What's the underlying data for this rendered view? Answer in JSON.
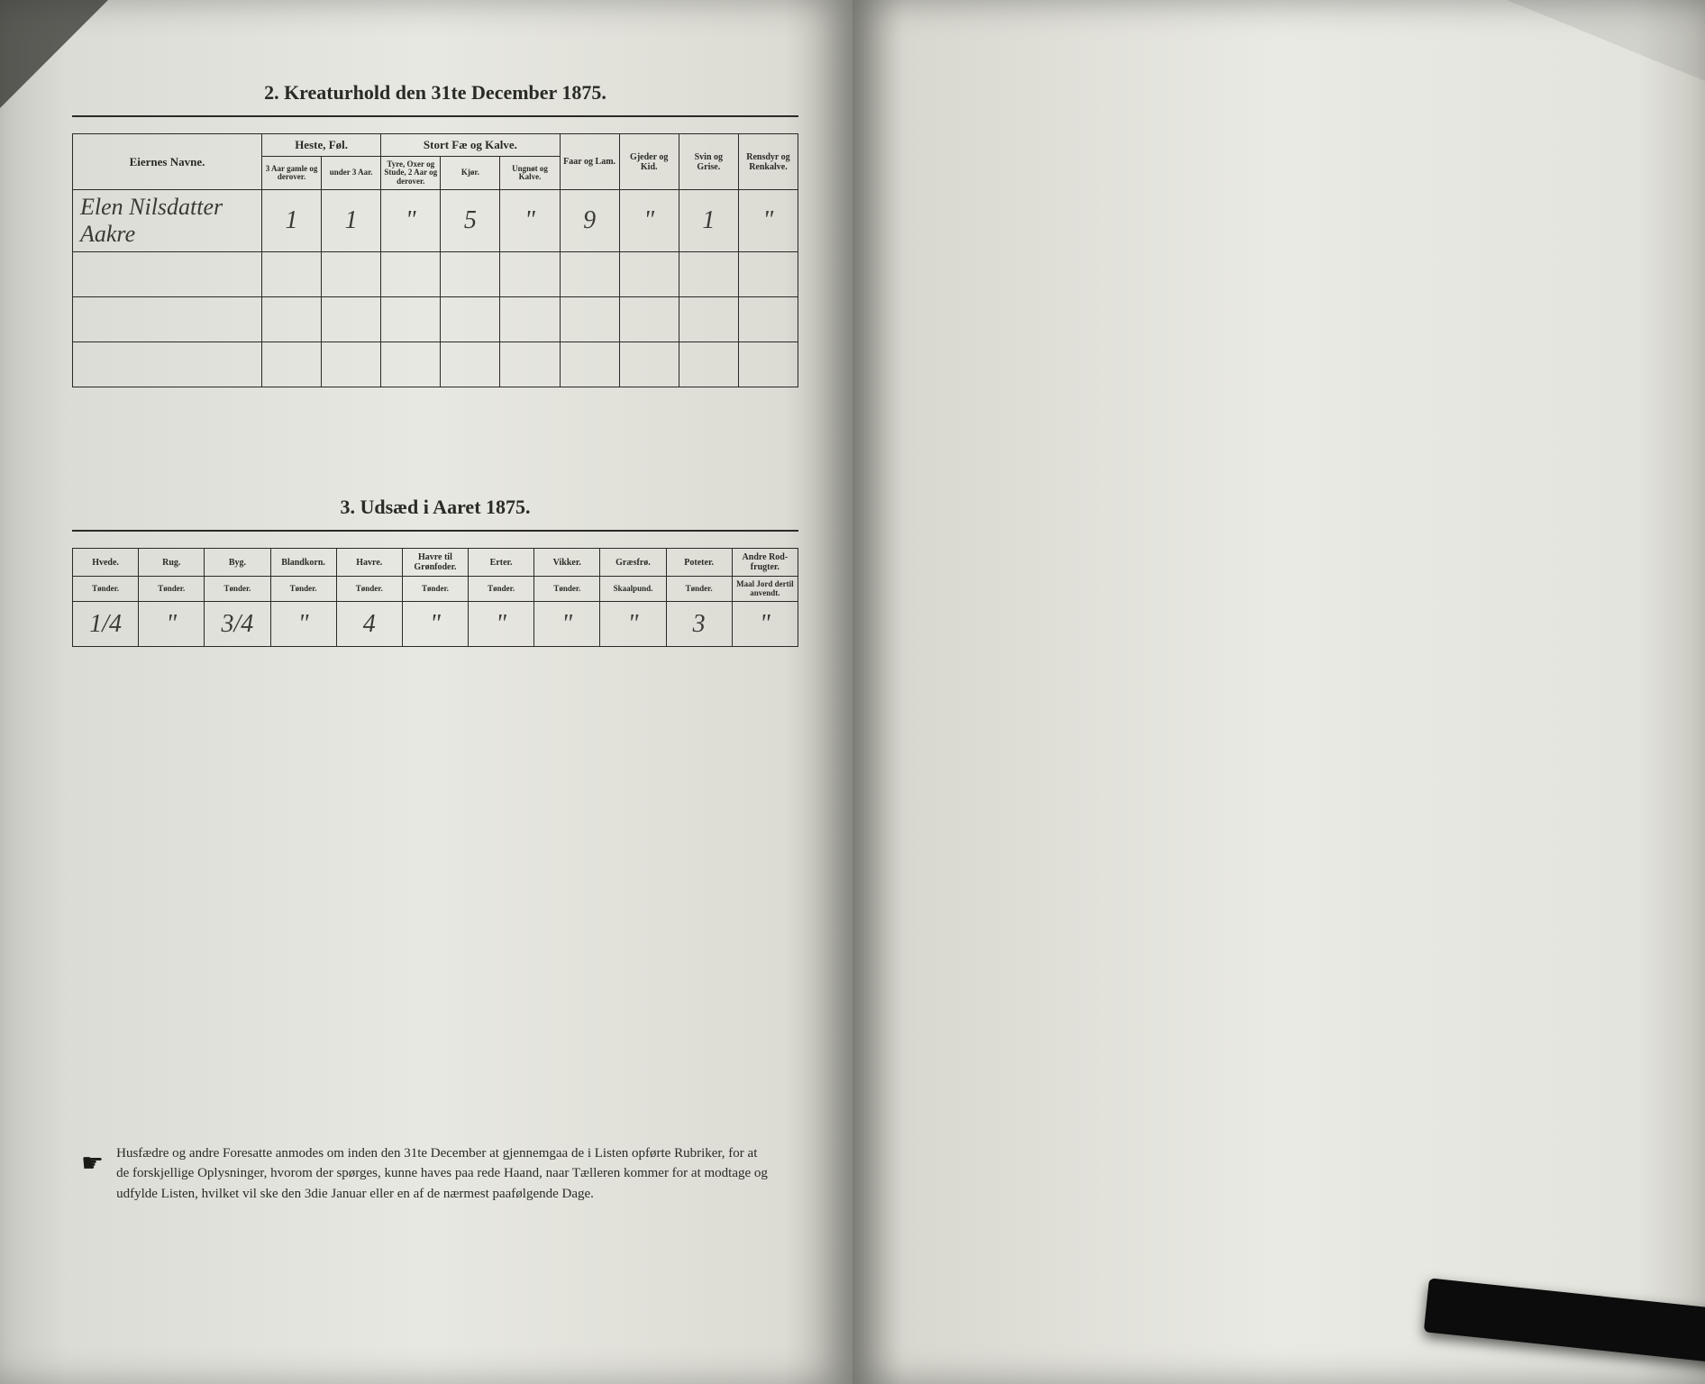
{
  "section1": {
    "heading": "2.  Kreaturhold den 31te December 1875.",
    "row1": {
      "label": "Eiernes Navne.",
      "groups": [
        {
          "label": "Heste, Føl.",
          "cols": [
            {
              "sub": "3 Aar gamle og derover."
            },
            {
              "sub": "under 3 Aar."
            }
          ]
        },
        {
          "label": "Stort Fæ og Kalve.",
          "cols": [
            {
              "sub": "Tyre, Oxer og Stude, 2 Aar og derover."
            },
            {
              "sub": "Kjør."
            },
            {
              "sub": "Ungnøt og Kalve."
            }
          ]
        },
        {
          "single": "Faar og Lam."
        },
        {
          "single": "Gjeder og Kid."
        },
        {
          "single": "Svin og Grise."
        },
        {
          "single": "Rensdyr og Renkalve."
        }
      ]
    },
    "data": [
      {
        "name": "Elen Nilsdatter Aakre",
        "vals": [
          "1",
          "1",
          "\"",
          "5",
          "\"",
          "9",
          "\"",
          "1",
          "\""
        ]
      },
      {
        "name": "",
        "vals": [
          "",
          "",
          "",
          "",
          "",
          "",
          "",
          "",
          ""
        ]
      },
      {
        "name": "",
        "vals": [
          "",
          "",
          "",
          "",
          "",
          "",
          "",
          "",
          ""
        ]
      },
      {
        "name": "",
        "vals": [
          "",
          "",
          "",
          "",
          "",
          "",
          "",
          "",
          ""
        ]
      }
    ]
  },
  "section2": {
    "heading": "3.  Udsæd i Aaret 1875.",
    "cols": [
      {
        "label": "Hvede.",
        "unit": "Tønder."
      },
      {
        "label": "Rug.",
        "unit": "Tønder."
      },
      {
        "label": "Byg.",
        "unit": "Tønder."
      },
      {
        "label": "Blandkorn.",
        "unit": "Tønder."
      },
      {
        "label": "Havre.",
        "unit": "Tønder."
      },
      {
        "label": "Havre til Grønfoder.",
        "unit": "Tønder."
      },
      {
        "label": "Erter.",
        "unit": "Tønder."
      },
      {
        "label": "Vikker.",
        "unit": "Tønder."
      },
      {
        "label": "Græsfrø.",
        "unit": "Skaalpund."
      },
      {
        "label": "Poteter.",
        "unit": "Tønder."
      },
      {
        "label": "Andre Rod-frugter.",
        "unit": "Maal Jord dertil anvendt."
      }
    ],
    "data": [
      "1/4",
      "\"",
      "3/4",
      "\"",
      "4",
      "\"",
      "\"",
      "\"",
      "\"",
      "3",
      "\""
    ]
  },
  "footer": "Husfædre og andre Foresatte anmodes om inden den 31te December at gjennemgaa de i Listen opførte Rubriker, for at de forskjellige Oplysninger, hvorom der spørges, kunne haves paa rede Haand, naar Tælleren kommer for at modtage og udfylde Listen, hvilket vil ske den 3die Januar eller en af de nærmest paafølgende Dage."
}
